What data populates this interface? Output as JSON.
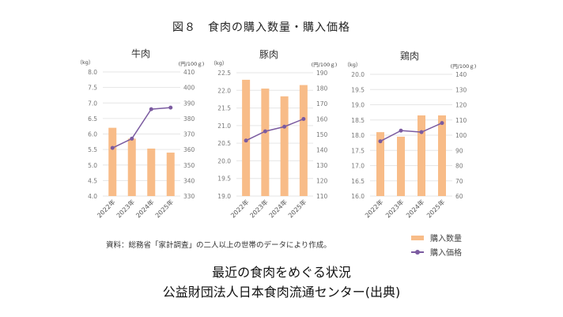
{
  "figure_title": "図８　食肉の購入数量・購入価格",
  "source_note": "資料：総務省「家計調査」の二人以上の世帯のデータにより作成。",
  "legend": {
    "bar_label": "購入数量",
    "line_label": "購入価格"
  },
  "colors": {
    "bar": "#F8BC88",
    "line": "#7B5BA0",
    "grid": "#E6E6E6",
    "axis_text": "#777777"
  },
  "captions": [
    "最近の食肉をめぐる状況",
    "公益財団法人日本食肉流通センター(出典)"
  ],
  "chart_data": [
    {
      "type": "bar+line",
      "title": "牛肉",
      "left_unit": "（kg）",
      "right_unit": "(円/100ｇ)",
      "categories": [
        "2022年",
        "2023年",
        "2024年",
        "2025年"
      ],
      "series": [
        {
          "name": "購入数量",
          "type": "bar",
          "axis": "left",
          "values": [
            6.2,
            5.85,
            5.53,
            5.4
          ]
        },
        {
          "name": "購入価格",
          "type": "line",
          "axis": "right",
          "values": [
            361,
            367,
            386,
            387
          ]
        }
      ],
      "ylim_left": [
        4.0,
        8.0
      ],
      "yticks_left": [
        "4.0",
        "4.5",
        "5.0",
        "5.5",
        "6.0",
        "6.5",
        "7.0",
        "7.5",
        "8.0"
      ],
      "ylim_right": [
        330,
        410
      ],
      "yticks_right": [
        "330",
        "340",
        "350",
        "360",
        "370",
        "380",
        "390",
        "400",
        "410"
      ],
      "grid": true
    },
    {
      "type": "bar+line",
      "title": "豚肉",
      "left_unit": "（kg）",
      "right_unit": "(円/100ｇ)",
      "categories": [
        "2022年",
        "2023年",
        "2024年",
        "2025年"
      ],
      "series": [
        {
          "name": "購入数量",
          "type": "bar",
          "axis": "left",
          "values": [
            22.3,
            22.05,
            21.83,
            22.15
          ]
        },
        {
          "name": "購入価格",
          "type": "line",
          "axis": "right",
          "values": [
            146,
            152,
            155,
            160
          ]
        }
      ],
      "ylim_left": [
        19.0,
        22.5
      ],
      "yticks_left": [
        "19.0",
        "19.5",
        "20.0",
        "20.5",
        "21.0",
        "21.5",
        "22.0",
        "22.5"
      ],
      "ylim_right": [
        110,
        190
      ],
      "yticks_right": [
        "110",
        "120",
        "130",
        "140",
        "150",
        "160",
        "170",
        "180",
        "190"
      ],
      "grid": true
    },
    {
      "type": "bar+line",
      "title": "鶏肉",
      "left_unit": "（kg）",
      "right_unit": "(円/100ｇ)",
      "categories": [
        "2022年",
        "2023年",
        "2024年",
        "2025年"
      ],
      "series": [
        {
          "name": "購入数量",
          "type": "bar",
          "axis": "left",
          "values": [
            18.1,
            17.95,
            18.65,
            18.65
          ]
        },
        {
          "name": "購入価格",
          "type": "line",
          "axis": "right",
          "values": [
            96,
            103,
            102,
            108
          ]
        }
      ],
      "ylim_left": [
        16.0,
        20.0
      ],
      "yticks_left": [
        "16.0",
        "16.5",
        "17.0",
        "17.5",
        "18.0",
        "18.5",
        "19.0",
        "19.5",
        "20.0"
      ],
      "ylim_right": [
        60,
        140
      ],
      "yticks_right": [
        "60",
        "70",
        "80",
        "90",
        "100",
        "110",
        "120",
        "130",
        "140"
      ],
      "grid": true
    }
  ]
}
